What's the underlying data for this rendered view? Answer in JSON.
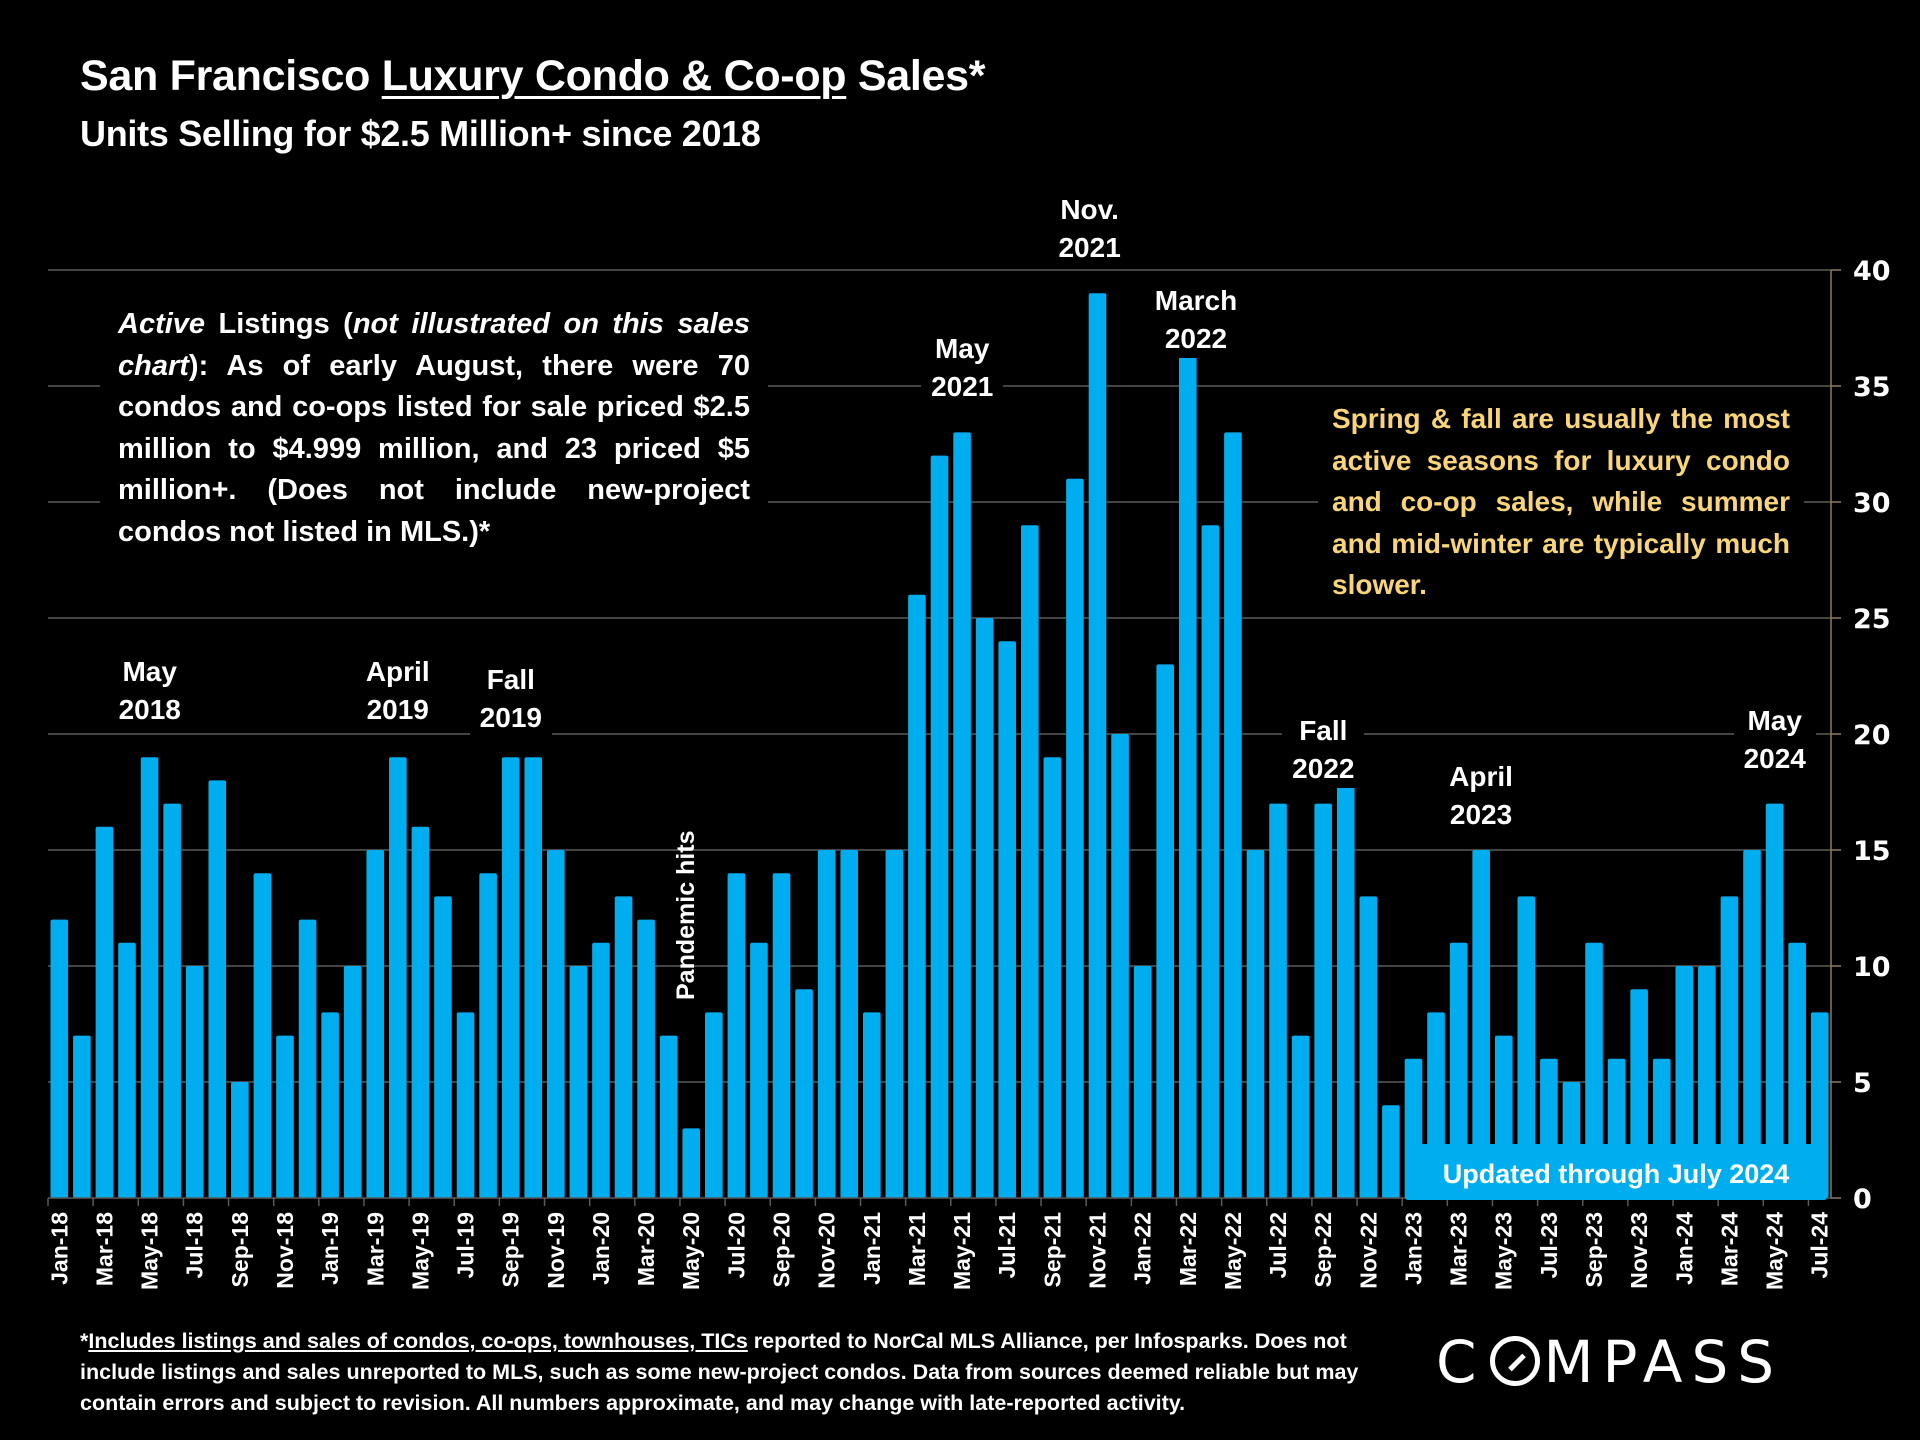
{
  "header": {
    "title_prefix": "San Francisco ",
    "title_underlined": "Luxury Condo & Co-op",
    "title_suffix": " Sales*",
    "subtitle": "Units Selling for $2.5 Million+ since 2018"
  },
  "annotations": {
    "active_listings_italic_1": "Active",
    "active_listings_text_1": " Listings (",
    "active_listings_italic_2": "not illustrated on this sales chart",
    "active_listings_text_2": "): As of early August, there were 70 condos and co-ops listed for sale priced $2.5 million to $4.999 million, and 23 priced $5 million+. (Does not include new-project condos not listed in MLS.)*",
    "seasonality": "Spring & fall are usually the most active seasons for luxury condo and co-op sales, while summer and mid-winter are typically much slower.",
    "updated": "Updated through July 2024",
    "pandemic": "Pandemic hits",
    "peaks": [
      {
        "line1": "May",
        "line2": "2018",
        "month_index": 4
      },
      {
        "line1": "April",
        "line2": "2019",
        "month_index": 15
      },
      {
        "line1": "Fall",
        "line2": "2019",
        "month_index": 20
      },
      {
        "line1": "May",
        "line2": "2021",
        "month_index": 40
      },
      {
        "line1": "Nov.",
        "line2": "2021",
        "month_index": 46
      },
      {
        "line1": "March",
        "line2": "2022",
        "month_index": 50
      },
      {
        "line1": "Fall",
        "line2": "2022",
        "month_index": 56
      },
      {
        "line1": "April",
        "line2": "2023",
        "month_index": 63
      },
      {
        "line1": "May",
        "line2": "2024",
        "month_index": 76
      }
    ]
  },
  "footer": {
    "footnote_star": "*",
    "footnote_underlined": "Includes listings and sales of condos, co-ops, townhouses, TICs",
    "footnote_rest": " reported to NorCal MLS Alliance, per Infosparks. Does not include listings and sales unreported to MLS, such as some new-project condos. Data from sources deemed reliable but may contain errors and subject to revision.  All numbers approximate, and may change with late-reported activity.",
    "logo_c": "C",
    "logo_rest": "MPASS"
  },
  "chart_data": {
    "type": "bar",
    "title": "San Francisco Luxury Condo & Co-op Sales*",
    "subtitle": "Units Selling for $2.5 Million+ since 2018",
    "xlabel": "",
    "ylabel": "",
    "ylim": [
      0,
      40
    ],
    "yticks": [
      0,
      5,
      10,
      15,
      20,
      25,
      30,
      35,
      40
    ],
    "y_axis_position": "right",
    "grid": true,
    "bar_color": "#00AEEF",
    "categories": [
      "Jan-18",
      "Feb-18",
      "Mar-18",
      "Apr-18",
      "May-18",
      "Jun-18",
      "Jul-18",
      "Aug-18",
      "Sep-18",
      "Oct-18",
      "Nov-18",
      "Dec-18",
      "Jan-19",
      "Feb-19",
      "Mar-19",
      "Apr-19",
      "May-19",
      "Jun-19",
      "Jul-19",
      "Aug-19",
      "Sep-19",
      "Oct-19",
      "Nov-19",
      "Dec-19",
      "Jan-20",
      "Feb-20",
      "Mar-20",
      "Apr-20",
      "May-20",
      "Jun-20",
      "Jul-20",
      "Aug-20",
      "Sep-20",
      "Oct-20",
      "Nov-20",
      "Dec-20",
      "Jan-21",
      "Feb-21",
      "Mar-21",
      "Apr-21",
      "May-21",
      "Jun-21",
      "Jul-21",
      "Aug-21",
      "Sep-21",
      "Oct-21",
      "Nov-21",
      "Dec-21",
      "Jan-22",
      "Feb-22",
      "Mar-22",
      "Apr-22",
      "May-22",
      "Jun-22",
      "Jul-22",
      "Aug-22",
      "Sep-22",
      "Oct-22",
      "Nov-22",
      "Dec-22",
      "Jan-23",
      "Feb-23",
      "Mar-23",
      "Apr-23",
      "May-23",
      "Jun-23",
      "Jul-23",
      "Aug-23",
      "Sep-23",
      "Oct-23",
      "Nov-23",
      "Dec-23",
      "Jan-24",
      "Feb-24",
      "Mar-24",
      "Apr-24",
      "May-24",
      "Jun-24",
      "Jul-24"
    ],
    "xtick_labels_every": 2,
    "values": [
      12,
      7,
      16,
      11,
      19,
      17,
      10,
      18,
      5,
      14,
      7,
      12,
      8,
      10,
      15,
      19,
      16,
      13,
      8,
      14,
      19,
      19,
      15,
      10,
      11,
      13,
      12,
      7,
      3,
      8,
      14,
      11,
      14,
      9,
      15,
      15,
      8,
      15,
      26,
      32,
      33,
      25,
      24,
      29,
      19,
      31,
      39,
      20,
      10,
      23,
      37,
      29,
      33,
      15,
      17,
      7,
      17,
      19,
      13,
      4,
      6,
      8,
      11,
      15,
      7,
      13,
      6,
      5,
      11,
      6,
      9,
      6,
      10,
      10,
      13,
      15,
      17,
      11,
      8
    ]
  }
}
